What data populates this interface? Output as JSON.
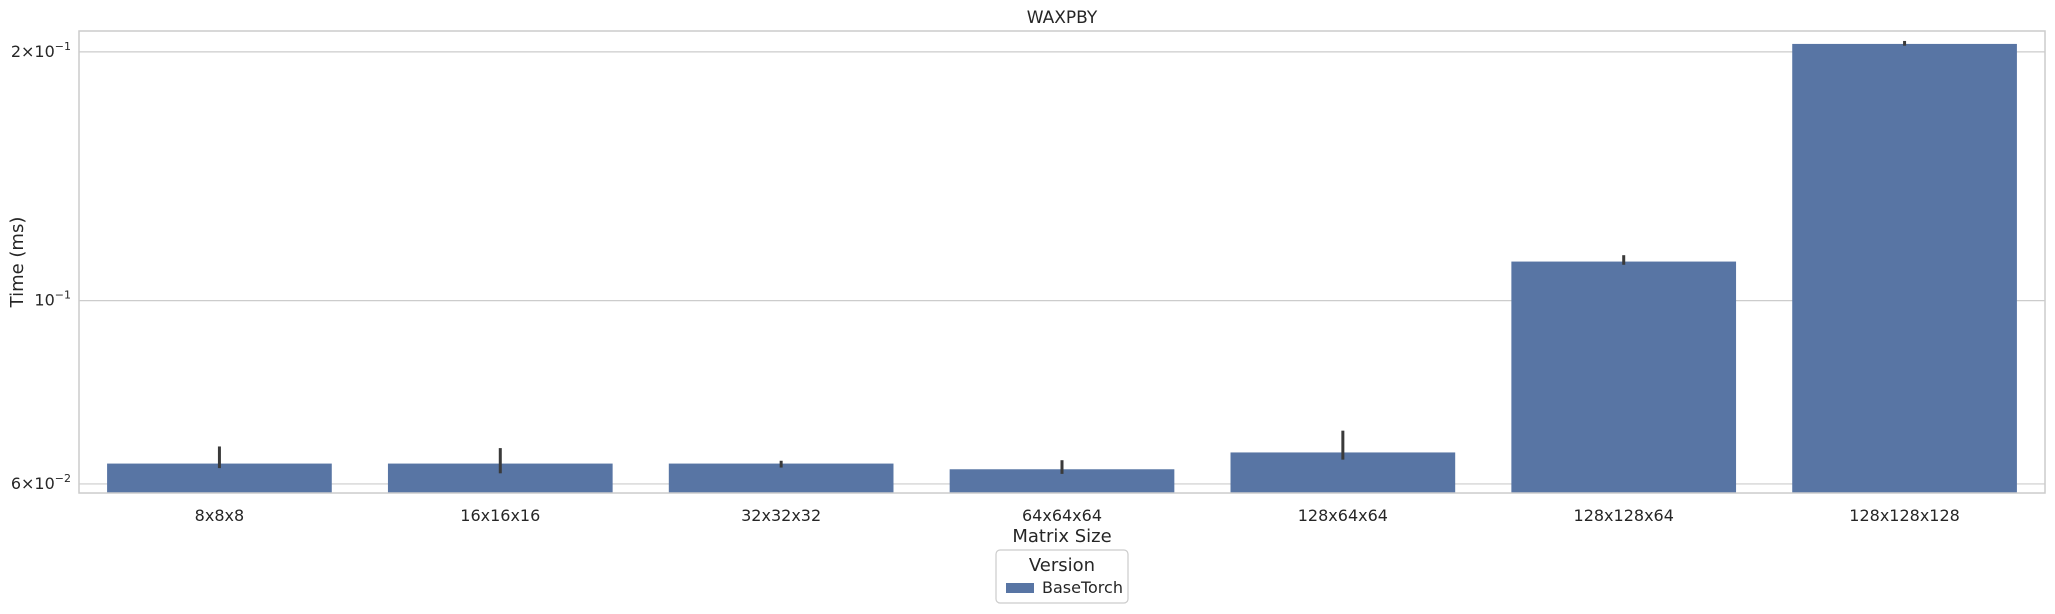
{
  "chart_data": {
    "type": "bar",
    "title": "WAXPBY",
    "xlabel": "Matrix Size",
    "ylabel": "Time (ms)",
    "yscale": "log",
    "ylim": [
      0.0585,
      0.212
    ],
    "yticks": [
      {
        "value": 0.06,
        "base": "6",
        "exp": "−2"
      },
      {
        "value": 0.1,
        "base": "",
        "exp": "−1"
      },
      {
        "value": 0.2,
        "base": "2",
        "exp": "−1"
      }
    ],
    "grid": "horizontal",
    "categories": [
      "8x8x8",
      "16x16x16",
      "32x32x32",
      "64x64x64",
      "128x64x64",
      "128x128x64",
      "128x128x128"
    ],
    "series": [
      {
        "name": "BaseTorch",
        "color": "#5875a4",
        "values": [
          0.0635,
          0.0635,
          0.0635,
          0.0625,
          0.0655,
          0.1115,
          0.2045
        ],
        "error_low": [
          0.0627,
          0.0618,
          0.0628,
          0.0617,
          0.0642,
          0.1105,
          0.2035
        ],
        "error_high": [
          0.0666,
          0.0663,
          0.064,
          0.0641,
          0.0696,
          0.1135,
          0.2062
        ]
      }
    ],
    "legend": {
      "title": "Version",
      "position": "bottom-center"
    }
  }
}
